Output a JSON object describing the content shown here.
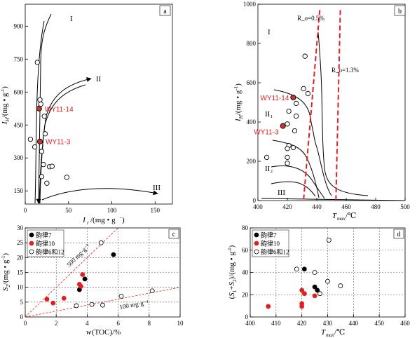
{
  "chart_data": [
    {
      "id": "a",
      "panel_label": "a",
      "type": "scatter",
      "xlabel": "I_r/(mg·g⁻¹)",
      "ylabel": "I_H/(mg·g⁻¹)",
      "xlim": [
        0,
        170
      ],
      "ylim": [
        90,
        1000
      ],
      "xticks": [
        0,
        50,
        100,
        150
      ],
      "yticks": [
        150,
        300,
        450,
        600,
        750,
        900
      ],
      "points": [
        {
          "x": 14,
          "y": 735
        },
        {
          "x": 6,
          "y": 385
        },
        {
          "x": 17,
          "y": 565
        },
        {
          "x": 18,
          "y": 545
        },
        {
          "x": 22,
          "y": 490
        },
        {
          "x": 23,
          "y": 410
        },
        {
          "x": 11,
          "y": 350
        },
        {
          "x": 19,
          "y": 330
        },
        {
          "x": 21,
          "y": 270
        },
        {
          "x": 28,
          "y": 260
        },
        {
          "x": 31,
          "y": 262
        },
        {
          "x": 19,
          "y": 215
        },
        {
          "x": 48,
          "y": 212
        },
        {
          "x": 25,
          "y": 185
        }
      ],
      "highlighted": [
        {
          "label": "WY11-14",
          "x": 16,
          "y": 525
        },
        {
          "label": "WY11-3",
          "x": 17,
          "y": 375
        }
      ],
      "zone_labels": [
        "I",
        "II",
        "III"
      ]
    },
    {
      "id": "b",
      "panel_label": "b",
      "type": "scatter",
      "xlabel": "T_max/°C",
      "ylabel": "I_H/(mg·g⁻¹)",
      "xlim": [
        400,
        500
      ],
      "ylim": [
        0,
        1000
      ],
      "xticks": [
        400,
        420,
        440,
        460,
        480,
        500
      ],
      "yticks": [
        0,
        200,
        400,
        600,
        800,
        1000
      ],
      "points": [
        {
          "x": 432,
          "y": 735
        },
        {
          "x": 431,
          "y": 570
        },
        {
          "x": 434,
          "y": 545
        },
        {
          "x": 426,
          "y": 495
        },
        {
          "x": 421,
          "y": 455
        },
        {
          "x": 426,
          "y": 430
        },
        {
          "x": 420,
          "y": 390
        },
        {
          "x": 425,
          "y": 355
        },
        {
          "x": 421,
          "y": 280
        },
        {
          "x": 424,
          "y": 270
        },
        {
          "x": 420,
          "y": 265
        },
        {
          "x": 406,
          "y": 220
        },
        {
          "x": 420,
          "y": 220
        },
        {
          "x": 420,
          "y": 190
        }
      ],
      "highlighted": [
        {
          "label": "WY11-14",
          "x": 424,
          "y": 525
        },
        {
          "label": "WY11-3",
          "x": 417,
          "y": 380
        }
      ],
      "ro_lines": [
        {
          "label": "R_o=0.5%",
          "x_top": 442,
          "x_bottom": 431
        },
        {
          "label": "R_o=1.3%",
          "x_top": 456,
          "x_bottom": 453
        }
      ],
      "zone_labels": [
        "I",
        "II₁",
        "II₂",
        "III"
      ]
    },
    {
      "id": "c",
      "panel_label": "c",
      "type": "scatter",
      "xlabel": "w(TOC)/%",
      "ylabel": "S₂/(mg·g⁻¹)",
      "xlim": [
        0,
        10
      ],
      "ylim": [
        0,
        30
      ],
      "xticks": [
        0,
        2,
        4,
        6,
        8,
        10
      ],
      "yticks": [
        0,
        5,
        10,
        15,
        20,
        25,
        30
      ],
      "legend": [
        "韵律7",
        "韵律10",
        "韵律6和12"
      ],
      "series": [
        {
          "name": "韵律7",
          "color": "#000000",
          "points": [
            {
              "x": 3.85,
              "y": 12.8
            },
            {
              "x": 5.7,
              "y": 21
            },
            {
              "x": 3.5,
              "y": 9.2
            }
          ]
        },
        {
          "name": "韵律10",
          "color": "#e02020",
          "points": [
            {
              "x": 1.4,
              "y": 6
            },
            {
              "x": 1.8,
              "y": 4.7
            },
            {
              "x": 2.5,
              "y": 6.3
            },
            {
              "x": 3.5,
              "y": 11
            },
            {
              "x": 3.6,
              "y": 10.3
            },
            {
              "x": 3.7,
              "y": 14.3
            }
          ]
        },
        {
          "name": "韵律6和12",
          "color": "#ffffff",
          "points": [
            {
              "x": 4.9,
              "y": 25
            },
            {
              "x": 3.3,
              "y": 3.8
            },
            {
              "x": 4.3,
              "y": 4.2
            },
            {
              "x": 5.0,
              "y": 4
            },
            {
              "x": 6.2,
              "y": 7
            },
            {
              "x": 8.2,
              "y": 8.8
            }
          ]
        }
      ],
      "reference_lines": [
        {
          "label": "500 mg·g⁻¹",
          "slope": 5
        },
        {
          "label": "100 mg·g⁻¹",
          "slope": 1
        }
      ]
    },
    {
      "id": "d",
      "panel_label": "d",
      "type": "scatter",
      "xlabel": "T_max/°C",
      "ylabel": "(S₁+S₂)/(mg·g⁻¹)",
      "xlim": [
        400,
        460
      ],
      "ylim": [
        0,
        80
      ],
      "xticks": [
        400,
        410,
        420,
        430,
        440,
        450,
        460
      ],
      "yticks": [
        0,
        20,
        40,
        60,
        80
      ],
      "legend": [
        "韵律7",
        "韵律10",
        "韵律6和12"
      ],
      "series": [
        {
          "name": "韵律7",
          "color": "#000000",
          "points": [
            {
              "x": 421,
              "y": 43
            },
            {
              "x": 425,
              "y": 27
            },
            {
              "x": 426,
              "y": 24
            }
          ]
        },
        {
          "name": "韵律10",
          "color": "#e02020",
          "points": [
            {
              "x": 407,
              "y": 9.5
            },
            {
              "x": 420,
              "y": 24
            },
            {
              "x": 421,
              "y": 21
            },
            {
              "x": 420,
              "y": 12
            },
            {
              "x": 420,
              "y": 9.5
            },
            {
              "x": 425,
              "y": 19
            }
          ]
        },
        {
          "name": "韵律6和12",
          "color": "#ffffff",
          "points": [
            {
              "x": 430.5,
              "y": 69
            },
            {
              "x": 418,
              "y": 43
            },
            {
              "x": 425,
              "y": 40
            },
            {
              "x": 435,
              "y": 28
            },
            {
              "x": 430,
              "y": 32
            },
            {
              "x": 427,
              "y": 21
            }
          ]
        }
      ]
    }
  ]
}
